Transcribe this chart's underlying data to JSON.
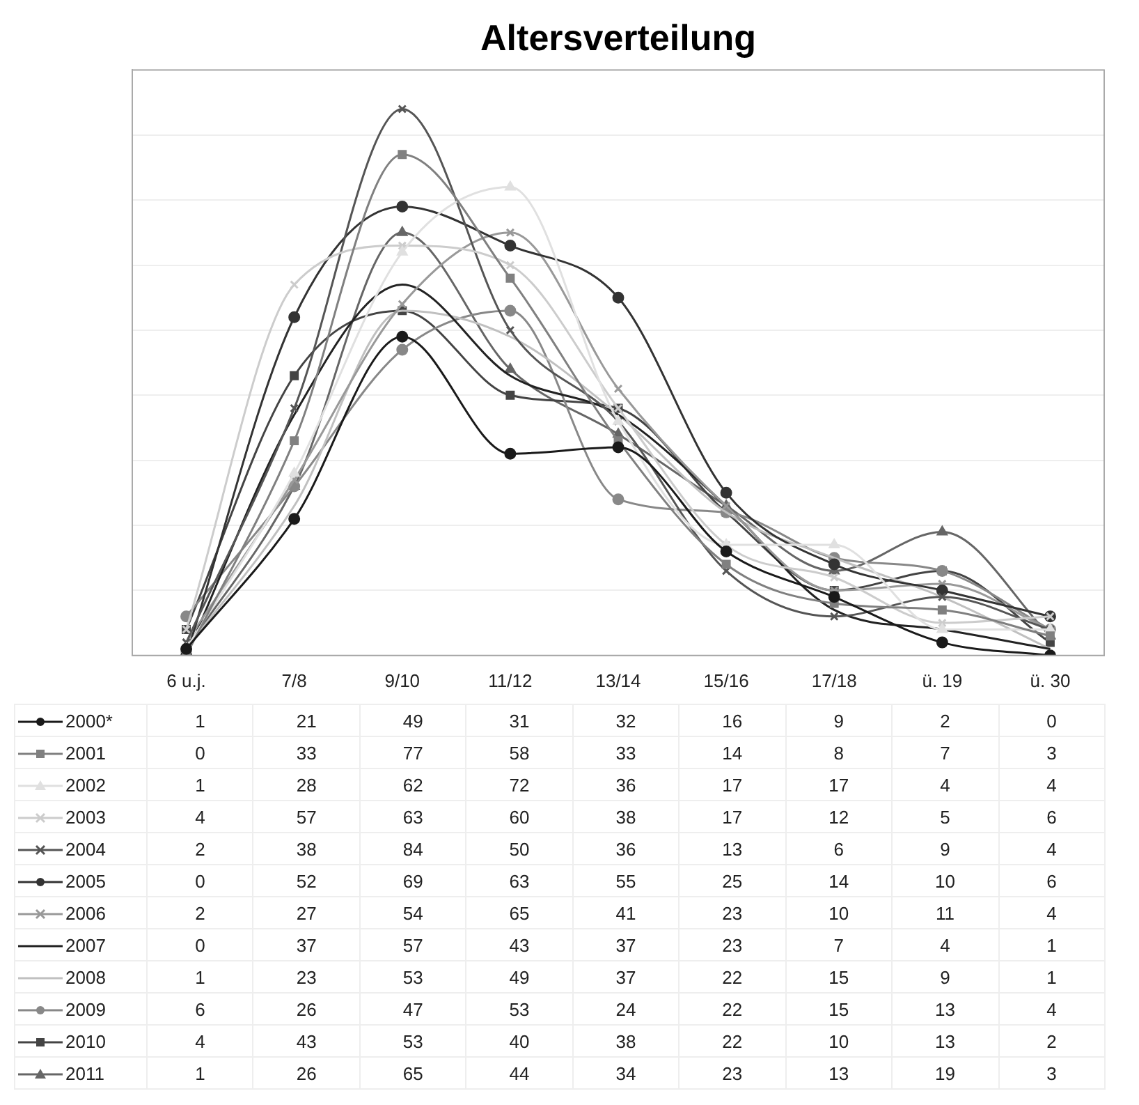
{
  "chart_data": {
    "type": "line",
    "title": "Altersverteilung",
    "categories": [
      "6 u.j.",
      "7/8",
      "9/10",
      "11/12",
      "13/14",
      "15/16",
      "17/18",
      "ü. 19",
      "ü. 30"
    ],
    "ylim": [
      0,
      90
    ],
    "yticks": [
      {
        "value": 0,
        "label": null
      },
      {
        "value": 10,
        "label": null
      },
      {
        "value": 20,
        "label": null
      },
      {
        "value": 30,
        "label": null
      },
      {
        "value": 40,
        "label": null
      },
      {
        "value": 50,
        "label": null
      },
      {
        "value": 60,
        "label": null
      },
      {
        "value": 70,
        "label": null
      },
      {
        "value": 80,
        "label": null
      },
      {
        "value": 90,
        "label": null
      }
    ],
    "tick_labels": "x",
    "grid": "y",
    "legend": "bottom",
    "data_labels": true,
    "series": [
      {
        "name": "2000*",
        "color": "#1a1a1a",
        "marker": "circle",
        "values": [
          1,
          21,
          49,
          31,
          32,
          16,
          9,
          2,
          0
        ]
      },
      {
        "name": "2001",
        "color": "#808080",
        "marker": "square",
        "values": [
          0,
          33,
          77,
          58,
          33,
          14,
          8,
          7,
          3
        ]
      },
      {
        "name": "2002",
        "color": "#e0e0e0",
        "marker": "triangle",
        "values": [
          1,
          28,
          62,
          72,
          36,
          17,
          17,
          4,
          4
        ]
      },
      {
        "name": "2003",
        "color": "#cccccc",
        "marker": "cross",
        "values": [
          4,
          57,
          63,
          60,
          38,
          17,
          12,
          5,
          6
        ]
      },
      {
        "name": "2004",
        "color": "#555555",
        "marker": "cross",
        "values": [
          2,
          38,
          84,
          50,
          36,
          13,
          6,
          9,
          4
        ]
      },
      {
        "name": "2005",
        "color": "#333333",
        "marker": "circle",
        "values": [
          0,
          52,
          69,
          63,
          55,
          25,
          14,
          10,
          6
        ]
      },
      {
        "name": "2006",
        "color": "#999999",
        "marker": "cross",
        "values": [
          2,
          27,
          54,
          65,
          41,
          23,
          10,
          11,
          4
        ]
      },
      {
        "name": "2007",
        "color": "#222222",
        "marker": "none",
        "values": [
          0,
          37,
          57,
          43,
          37,
          23,
          7,
          4,
          1
        ]
      },
      {
        "name": "2008",
        "color": "#c0c0c0",
        "marker": "none",
        "values": [
          1,
          23,
          53,
          49,
          37,
          22,
          15,
          9,
          1
        ]
      },
      {
        "name": "2009",
        "color": "#888888",
        "marker": "circle",
        "values": [
          6,
          26,
          47,
          53,
          24,
          22,
          15,
          13,
          4
        ]
      },
      {
        "name": "2010",
        "color": "#444444",
        "marker": "square",
        "values": [
          4,
          43,
          53,
          40,
          38,
          22,
          10,
          13,
          2
        ]
      },
      {
        "name": "2011",
        "color": "#666666",
        "marker": "triangle",
        "values": [
          1,
          26,
          65,
          44,
          34,
          23,
          13,
          19,
          3
        ]
      }
    ]
  }
}
